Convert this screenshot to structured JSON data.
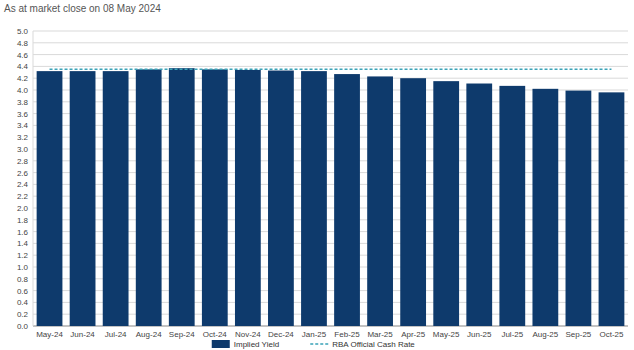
{
  "chart_data": {
    "type": "bar",
    "title": "As at market close on 08 May 2024",
    "categories": [
      "May-24",
      "Jun-24",
      "Jul-24",
      "Aug-24",
      "Sep-24",
      "Oct-24",
      "Nov-24",
      "Dec-24",
      "Jan-25",
      "Feb-25",
      "Mar-25",
      "Apr-25",
      "May-25",
      "Jun-25",
      "Jul-25",
      "Aug-25",
      "Sep-25",
      "Oct-25"
    ],
    "series": [
      {
        "name": "Implied Yield",
        "type": "bar",
        "color": "#0e3a6c",
        "values": [
          4.32,
          4.32,
          4.32,
          4.35,
          4.37,
          4.35,
          4.34,
          4.33,
          4.32,
          4.27,
          4.23,
          4.2,
          4.15,
          4.11,
          4.07,
          4.02,
          3.99,
          3.96
        ]
      },
      {
        "name": "RBA Official Cash Rate",
        "type": "line",
        "color": "#3aa3b8",
        "line_style": "dashed",
        "values": [
          4.35,
          4.35,
          4.35,
          4.35,
          4.35,
          4.35,
          4.35,
          4.35,
          4.35,
          4.35,
          4.35,
          4.35,
          4.35,
          4.35,
          4.35,
          4.35,
          4.35,
          4.35
        ]
      }
    ],
    "ylim": [
      0,
      5
    ],
    "yticks": [
      {
        "value": 0,
        "label": "0.0"
      },
      0.2,
      0.4,
      0.6,
      0.8,
      {
        "value": 1,
        "label": "1.0"
      },
      1.2,
      1.4,
      1.6,
      1.8,
      {
        "value": 2,
        "label": "2.0"
      },
      2.2,
      2.4,
      2.6,
      2.8,
      {
        "value": 3,
        "label": "3.0"
      },
      3.2,
      3.4,
      3.6,
      3.8,
      {
        "value": 4,
        "label": "4.0"
      },
      4.2,
      4.4,
      4.6,
      4.8,
      {
        "value": 5,
        "label": "5.0"
      }
    ],
    "grid": true,
    "legend": "bottom"
  }
}
